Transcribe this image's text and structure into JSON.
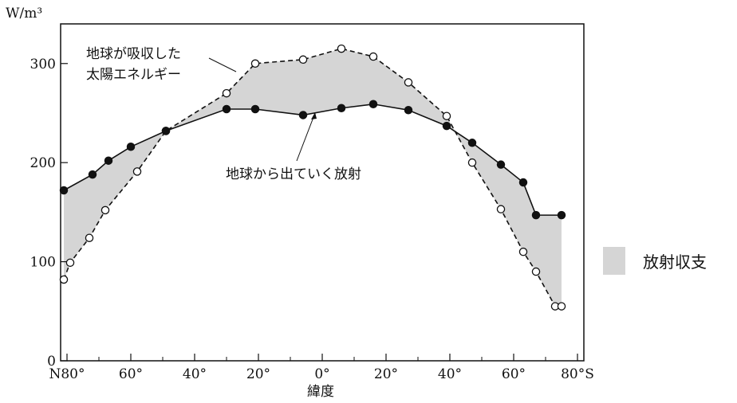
{
  "chart_data": {
    "type": "line",
    "ylabel": "W/m³",
    "xlabel": "緯度",
    "ylim": [
      0,
      340
    ],
    "xlim": [
      -82,
      82
    ],
    "yticks": [
      {
        "value": 0,
        "label": "0"
      },
      {
        "value": 100,
        "label": "100"
      },
      {
        "value": 200,
        "label": "200"
      },
      {
        "value": 300,
        "label": "300"
      }
    ],
    "xticks": [
      {
        "value": -80,
        "label": "N80°"
      },
      {
        "value": -60,
        "label": "60°"
      },
      {
        "value": -40,
        "label": "40°"
      },
      {
        "value": -20,
        "label": "20°"
      },
      {
        "value": 0,
        "label": "0°"
      },
      {
        "value": 20,
        "label": "20°"
      },
      {
        "value": 40,
        "label": "40°"
      },
      {
        "value": 60,
        "label": "60°"
      },
      {
        "value": 80,
        "label": "80°S"
      }
    ],
    "x_minor_ticks": [
      -70,
      -50,
      -30,
      -10,
      10,
      30,
      50,
      70
    ],
    "grid": false,
    "series": [
      {
        "name": "地球が吸収した太陽エネルギー",
        "label_lines": [
          "地球が吸収した",
          "太陽エネルギー"
        ],
        "marker": "open-circle",
        "line_style": "dashed",
        "x": [
          -81,
          -79,
          -73,
          -68,
          -58,
          -49,
          -30,
          -21,
          -6,
          6,
          16,
          27,
          39,
          47,
          56,
          63,
          67,
          73,
          75
        ],
        "y": [
          82,
          99,
          124,
          152,
          191,
          232,
          270,
          300,
          304,
          315,
          307,
          281,
          247,
          200,
          153,
          110,
          90,
          55,
          55
        ]
      },
      {
        "name": "地球から出ていく放射",
        "marker": "filled-circle",
        "line_style": "solid",
        "x": [
          -81,
          -72,
          -67,
          -60,
          -49,
          -30,
          -21,
          -6,
          6,
          16,
          27,
          39,
          47,
          56,
          63,
          67,
          75
        ],
        "y": [
          172,
          188,
          202,
          216,
          232,
          254,
          254,
          248,
          255,
          259,
          253,
          237,
          220,
          198,
          180,
          147,
          147
        ]
      }
    ],
    "legend": {
      "label": "放射収支",
      "color": "#d5d5d5",
      "placement": "right"
    },
    "fill_color": "#d5d5d5"
  }
}
